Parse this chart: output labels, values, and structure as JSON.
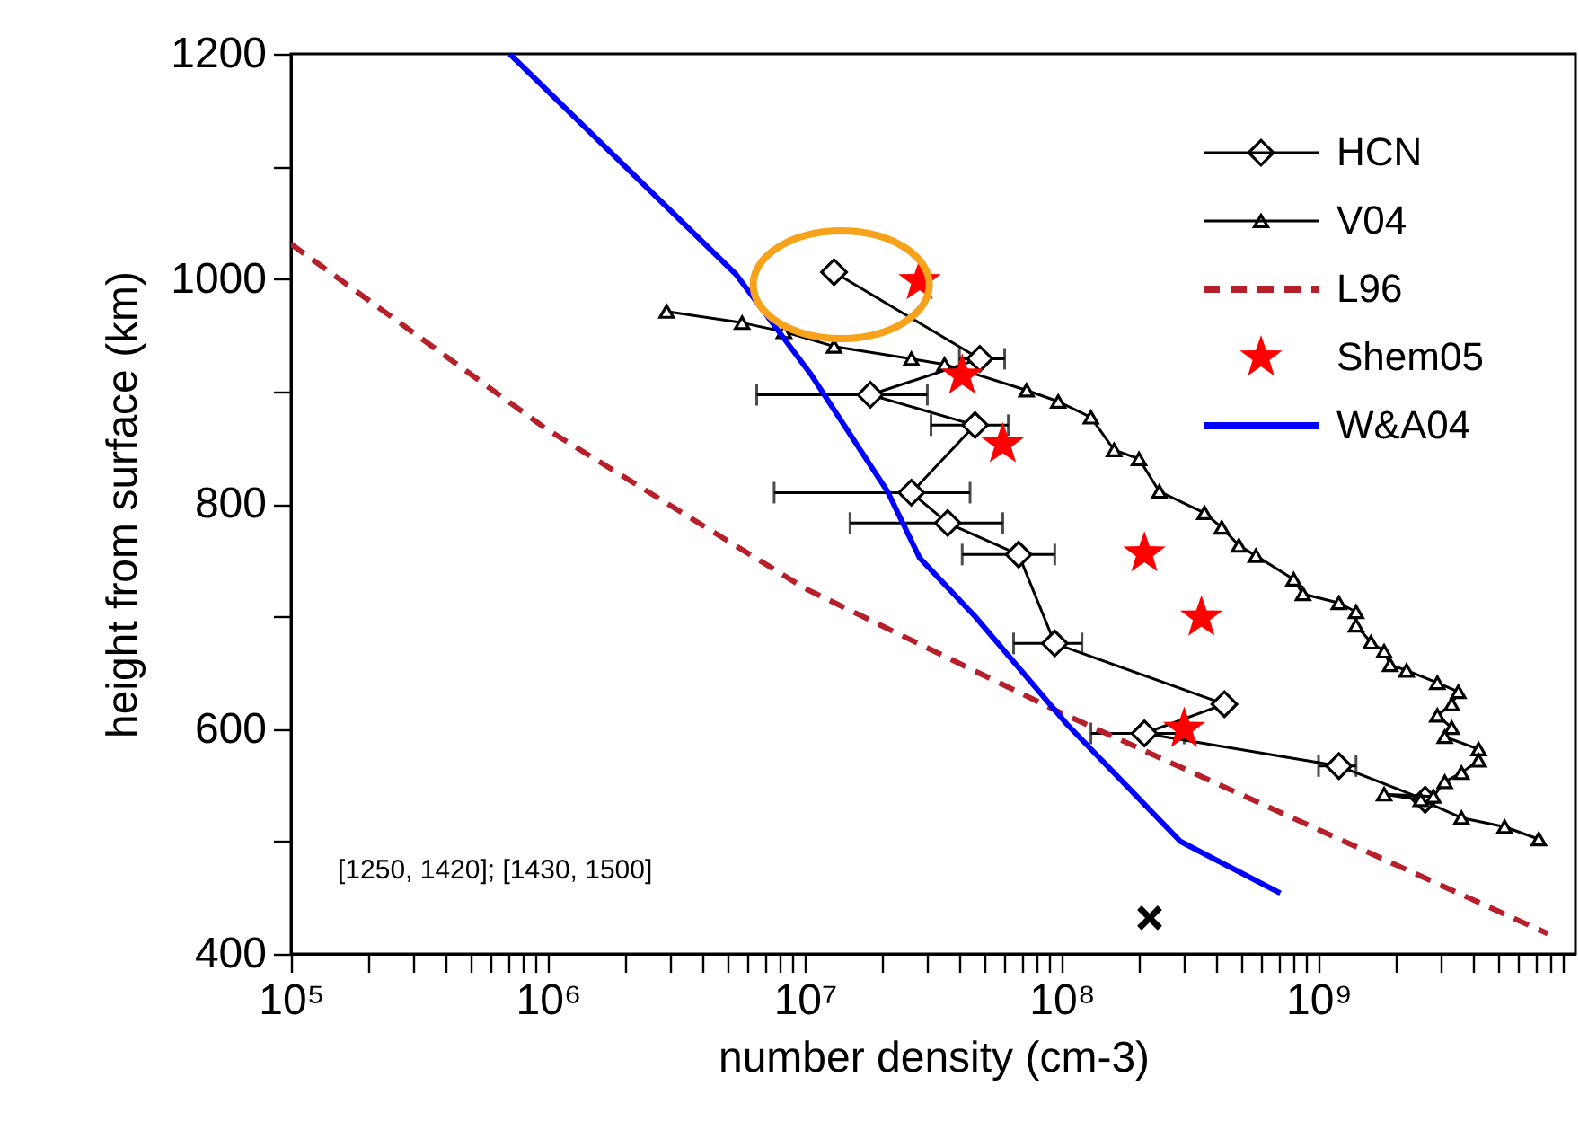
{
  "chart_data": {
    "type": "line",
    "xlabel": "number density (cm-3)",
    "ylabel": "height from surface (km)",
    "log": "x",
    "legend": "top right",
    "grid": false,
    "xlim": [
      100000,
      10000000000
    ],
    "ylim": [
      400,
      1200
    ],
    "xticks": [
      {
        "value": 100000,
        "label": "10⁵"
      },
      {
        "value": 200000,
        "label": null
      },
      {
        "value": 300000,
        "label": null
      },
      {
        "value": 400000,
        "label": null
      },
      {
        "value": 500000,
        "label": null
      },
      {
        "value": 600000,
        "label": null
      },
      {
        "value": 700000,
        "label": null
      },
      {
        "value": 800000,
        "label": null
      },
      {
        "value": 900000,
        "label": null
      },
      {
        "value": 1000000,
        "label": "10⁶"
      },
      {
        "value": 2000000,
        "label": null
      },
      {
        "value": 3000000,
        "label": null
      },
      {
        "value": 4000000,
        "label": null
      },
      {
        "value": 5000000,
        "label": null
      },
      {
        "value": 6000000,
        "label": null
      },
      {
        "value": 7000000,
        "label": null
      },
      {
        "value": 8000000,
        "label": null
      },
      {
        "value": 9000000,
        "label": null
      },
      {
        "value": 10000000,
        "label": "10⁷"
      },
      {
        "value": 20000000,
        "label": null
      },
      {
        "value": 30000000,
        "label": null
      },
      {
        "value": 40000000,
        "label": null
      },
      {
        "value": 50000000,
        "label": null
      },
      {
        "value": 60000000,
        "label": null
      },
      {
        "value": 70000000,
        "label": null
      },
      {
        "value": 80000000,
        "label": null
      },
      {
        "value": 90000000,
        "label": null
      },
      {
        "value": 100000000,
        "label": "10⁸"
      },
      {
        "value": 200000000,
        "label": null
      },
      {
        "value": 300000000,
        "label": null
      },
      {
        "value": 400000000,
        "label": null
      },
      {
        "value": 500000000,
        "label": null
      },
      {
        "value": 600000000,
        "label": null
      },
      {
        "value": 700000000,
        "label": null
      },
      {
        "value": 800000000,
        "label": null
      },
      {
        "value": 900000000,
        "label": null
      },
      {
        "value": 1000000000,
        "label": "10⁹"
      },
      {
        "value": 2000000000,
        "label": null
      },
      {
        "value": 3000000000,
        "label": null
      },
      {
        "value": 4000000000,
        "label": null
      },
      {
        "value": 5000000000,
        "label": null
      },
      {
        "value": 6000000000,
        "label": null
      },
      {
        "value": 7000000000,
        "label": null
      },
      {
        "value": 8000000000,
        "label": null
      },
      {
        "value": 9000000000,
        "label": null
      }
    ],
    "yticks": [
      400,
      {
        "value": 500,
        "label": null
      },
      600,
      {
        "value": 700,
        "label": null
      },
      800,
      {
        "value": 900,
        "label": null
      },
      1000,
      {
        "value": 1100,
        "label": null
      },
      1200
    ],
    "annotations": [
      "[1250, 1420]; [1430, 1500]"
    ],
    "series": [
      {
        "name": "HCN",
        "marker": "diamond",
        "color": "#000000",
        "x": [
          13000000,
          48000000,
          18000000,
          46000000,
          26000000,
          36000000,
          68000000,
          94000000,
          430000000,
          210000000,
          1200000000,
          2600000000
        ],
        "values": [
          1006,
          929,
          897,
          870,
          810,
          783,
          755,
          676,
          622,
          596,
          567,
          537
        ],
        "xerrors": [
          null,
          [
            40000000,
            60000000
          ],
          [
            6500000,
            30000000
          ],
          [
            31000000,
            62000000
          ],
          [
            7600000,
            44000000
          ],
          [
            15000000,
            59000000
          ],
          [
            41000000,
            94000000
          ],
          [
            65000000,
            120000000
          ],
          null,
          [
            130000000,
            300000000
          ],
          [
            1000000000,
            1400000000
          ],
          null
        ]
      },
      {
        "name": "V04",
        "marker": "triangle",
        "color": "#000000",
        "x": [
          2900000,
          5700000,
          8300000,
          13000000,
          26000000,
          35000000,
          73000000,
          97000000,
          130000000,
          160000000,
          200000000,
          240000000,
          360000000,
          420000000,
          490000000,
          570000000,
          800000000,
          870000000,
          1200000000,
          1400000000,
          1400000000,
          1600000000,
          1800000000,
          1900000000,
          2200000000,
          2900000000,
          3500000000,
          3300000000,
          2900000000,
          3300000000,
          3100000000,
          4200000000,
          4200000000,
          3600000000,
          3100000000,
          2800000000,
          1800000000,
          2500000000,
          3600000000,
          5300000000,
          7200000000
        ],
        "values": [
          971,
          961,
          953,
          940,
          929,
          924,
          901,
          891,
          877,
          848,
          840,
          811,
          792,
          779,
          763,
          754,
          733,
          720,
          712,
          704,
          692,
          677,
          669,
          657,
          652,
          641,
          633,
          622,
          612,
          601,
          593,
          582,
          572,
          561,
          553,
          540,
          542,
          537,
          521,
          513,
          502
        ]
      },
      {
        "name": "L96",
        "marker": "none",
        "line_style": "dashed",
        "color": "#b5202a",
        "x": [
          100000,
          980000,
          10000000,
          100000000,
          7800000000
        ],
        "values": [
          1031,
          867,
          725,
          614,
          418
        ]
      },
      {
        "name": "Shem05",
        "type": "scatter",
        "marker": "star",
        "color": "#ff0000",
        "x": [
          28000000,
          41000000,
          59000000,
          210000000,
          350000000,
          300000000
        ],
        "values": [
          998,
          914,
          853,
          756,
          699,
          600
        ]
      },
      {
        "name": "W&A04",
        "marker": "none",
        "color": "#0000ff",
        "x": [
          710000,
          5400000,
          10500000,
          21000000,
          28000000,
          46000000,
          105000000,
          290000000,
          710000000
        ],
        "values": [
          1200,
          1004,
          916,
          811,
          752,
          700,
          604,
          500,
          454
        ]
      },
      {
        "type": "scatter",
        "marker": "cross",
        "color": "#000000",
        "x": [
          220000000
        ],
        "values": [
          432
        ]
      }
    ]
  }
}
